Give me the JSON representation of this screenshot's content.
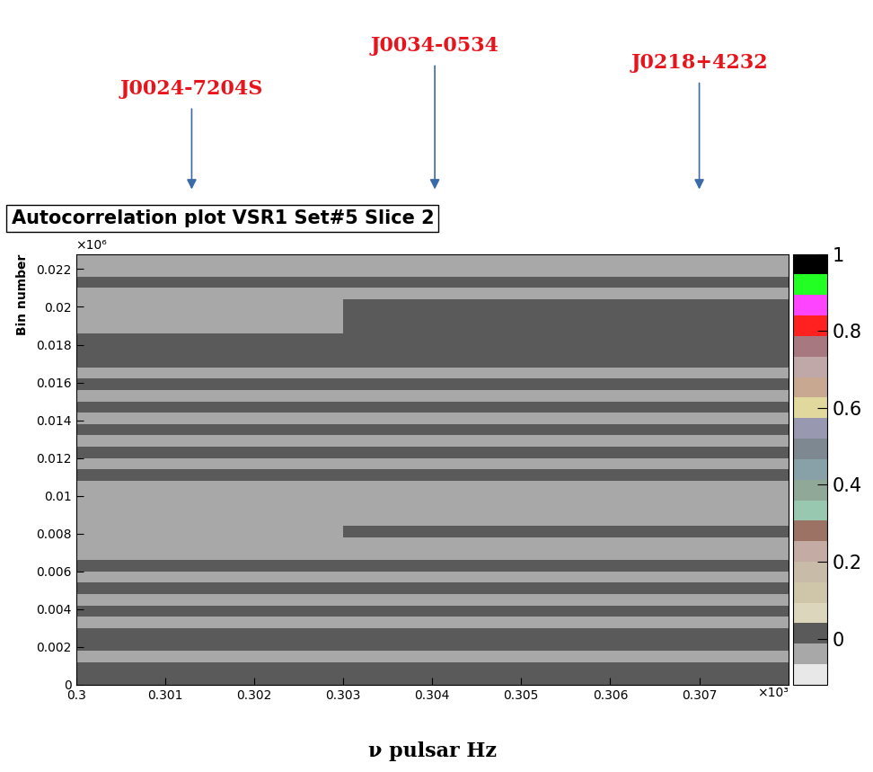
{
  "chart_data": {
    "type": "heatmap",
    "title": "Autocorrelation plot VSR1 Set#5 Slice 2",
    "xlabel": "ν pulsar Hz",
    "ylabel": "Bin number",
    "x_multiplier": "×10³",
    "y_multiplier": "×10⁶",
    "xlim": [
      0.3,
      0.308
    ],
    "ylim": [
      0,
      0.0228
    ],
    "xticks": [
      0.3,
      0.301,
      0.302,
      0.303,
      0.304,
      0.305,
      0.306,
      0.307
    ],
    "yticks": [
      0,
      0.002,
      0.004,
      0.006,
      0.008,
      0.01,
      0.012,
      0.014,
      0.016,
      0.018,
      0.02,
      0.022
    ],
    "annotations": [
      {
        "text": "J0024-7204S",
        "x": 0.3013
      },
      {
        "text": "J0034-0534",
        "x": 0.30403
      },
      {
        "text": "J0218+4232",
        "x": 0.307
      }
    ],
    "cells": [
      [
        0,
        0,
        0,
        0,
        0,
        0,
        0,
        0
      ],
      [
        0,
        0,
        0,
        0,
        0,
        0,
        0,
        0
      ],
      [
        -0.05,
        -0.05,
        -0.05,
        -0.05,
        -0.05,
        -0.05,
        -0.05,
        -0.05
      ],
      [
        0,
        0,
        0,
        0,
        0,
        0,
        0,
        0
      ],
      [
        0,
        0,
        0,
        0,
        0,
        0,
        0,
        0
      ],
      [
        -0.05,
        -0.05,
        -0.05,
        -0.05,
        -0.05,
        -0.05,
        -0.05,
        -0.05
      ],
      [
        0,
        0,
        0,
        0,
        0,
        0,
        0,
        0
      ],
      [
        -0.05,
        -0.05,
        -0.05,
        -0.05,
        -0.05,
        -0.05,
        -0.05,
        -0.05
      ],
      [
        0,
        0,
        0,
        0,
        0,
        0,
        0,
        0
      ],
      [
        -0.05,
        -0.05,
        -0.05,
        -0.05,
        -0.05,
        -0.05,
        -0.05,
        -0.05
      ],
      [
        0,
        0,
        0,
        0,
        0,
        0,
        0,
        0
      ],
      [
        -0.05,
        -0.05,
        -0.05,
        -0.05,
        -0.05,
        -0.05,
        -0.05,
        -0.05
      ],
      [
        -0.05,
        -0.05,
        -0.05,
        -0.05,
        -0.05,
        -0.05,
        -0.05,
        -0.05
      ],
      [
        -0.05,
        -0.05,
        -0.05,
        0,
        0,
        0,
        0,
        0
      ],
      [
        -0.05,
        -0.05,
        -0.05,
        -0.05,
        -0.05,
        -0.05,
        -0.05,
        -0.05
      ],
      [
        -0.05,
        -0.05,
        -0.05,
        -0.05,
        -0.05,
        -0.05,
        -0.05,
        -0.05
      ],
      [
        -0.05,
        -0.05,
        -0.05,
        -0.05,
        -0.05,
        -0.05,
        -0.05,
        -0.05
      ],
      [
        -0.05,
        -0.05,
        -0.05,
        -0.05,
        -0.05,
        -0.05,
        -0.05,
        -0.05
      ],
      [
        0,
        0,
        0,
        0,
        0,
        0,
        0,
        0
      ],
      [
        -0.05,
        -0.05,
        -0.05,
        -0.05,
        -0.05,
        -0.05,
        -0.05,
        -0.05
      ],
      [
        0,
        0,
        0,
        0,
        0,
        0,
        0,
        0
      ],
      [
        -0.05,
        -0.05,
        -0.05,
        -0.05,
        -0.05,
        -0.05,
        -0.05,
        -0.05
      ],
      [
        0,
        0,
        0,
        0,
        0,
        0,
        0,
        0
      ],
      [
        -0.05,
        -0.05,
        -0.05,
        -0.05,
        -0.05,
        -0.05,
        -0.05,
        -0.05
      ],
      [
        0,
        0,
        0,
        0,
        0,
        0,
        0,
        0
      ],
      [
        -0.05,
        -0.05,
        -0.05,
        -0.05,
        -0.05,
        -0.05,
        -0.05,
        -0.05
      ],
      [
        0,
        0,
        0,
        0,
        0,
        0,
        0,
        0
      ],
      [
        -0.05,
        -0.05,
        -0.05,
        -0.05,
        -0.05,
        -0.05,
        -0.05,
        -0.05
      ],
      [
        0,
        0,
        0,
        0,
        0,
        0,
        0,
        0
      ],
      [
        0,
        0,
        0,
        0,
        0,
        0,
        0,
        0
      ],
      [
        0,
        0,
        0,
        0,
        0,
        0,
        0,
        0
      ],
      [
        -0.05,
        -0.05,
        -0.05,
        0,
        0,
        0,
        0,
        0
      ],
      [
        -0.05,
        -0.05,
        -0.05,
        0,
        0,
        0,
        0,
        0
      ],
      [
        -0.05,
        -0.05,
        -0.05,
        0,
        0,
        0,
        0,
        0
      ],
      [
        -0.05,
        -0.05,
        -0.05,
        -0.05,
        -0.05,
        -0.05,
        -0.05,
        -0.05
      ],
      [
        0,
        0,
        0,
        0,
        0,
        0,
        0,
        0
      ],
      [
        -0.05,
        -0.05,
        -0.05,
        -0.05,
        -0.05,
        -0.05,
        -0.05,
        -0.05
      ],
      [
        -0.05,
        -0.05,
        -0.05,
        -0.05,
        -0.05,
        -0.05,
        -0.05,
        -0.05
      ]
    ],
    "colorbar": {
      "range": [
        -0.12,
        1
      ],
      "ticks": [
        0,
        0.2,
        0.4,
        0.6,
        0.8,
        1
      ],
      "colors": [
        "#e8e8e8",
        "#a8a8a8",
        "#5a5a5a",
        "#dcd6bc",
        "#cfc5a8",
        "#c8bca8",
        "#c4aca4",
        "#9c7264",
        "#98c8b0",
        "#90a898",
        "#88a0a8",
        "#7e8890",
        "#9898b0",
        "#e0d89c",
        "#c8a890",
        "#c0a8a8",
        "#a87880",
        "#ff2020",
        "#ff44ff",
        "#22ff22",
        "#000000"
      ]
    }
  }
}
